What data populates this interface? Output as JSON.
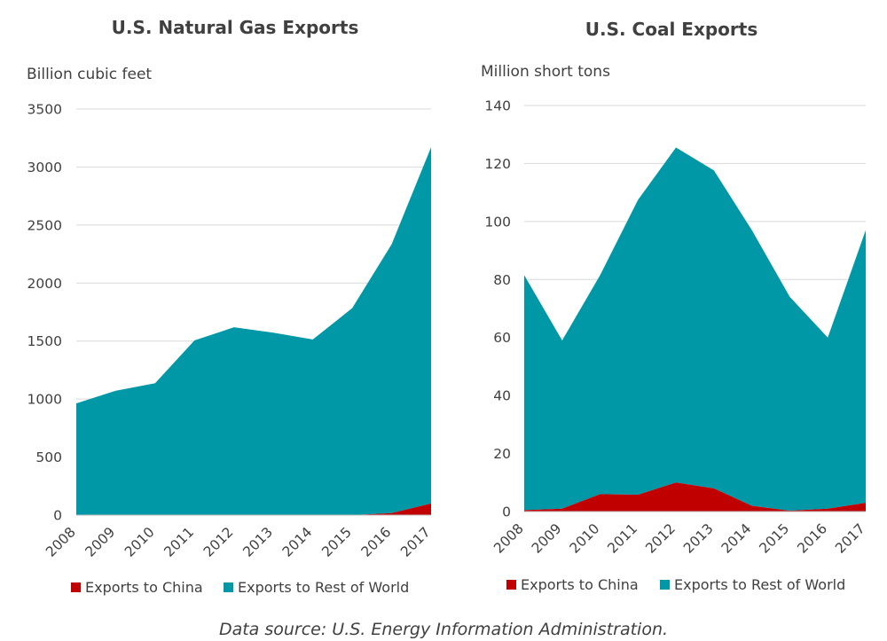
{
  "colors": {
    "china": "#c00000",
    "rest": "#0097a7",
    "grid": "#d9d9d9",
    "text": "#404040"
  },
  "source_note": "Data source: U.S. Energy Information Administration.",
  "chart_data": [
    {
      "type": "area",
      "stacked": true,
      "title": "U.S. Natural Gas Exports",
      "ylabel": "Billion cubic feet",
      "ylim": [
        0,
        3500
      ],
      "yticks": [
        0,
        500,
        1000,
        1500,
        2000,
        2500,
        3000,
        3500
      ],
      "x": [
        "2008",
        "2009",
        "2010",
        "2011",
        "2012",
        "2013",
        "2014",
        "2015",
        "2016",
        "2017"
      ],
      "grid": true,
      "legend": "bottom",
      "series": [
        {
          "name": "Exports to China",
          "color": "#c00000",
          "values": [
            0,
            0,
            0,
            0,
            0,
            0,
            0,
            0,
            17,
            100
          ]
        },
        {
          "name": "Exports to Rest of World",
          "color": "#0097a7",
          "values": [
            963,
            1072,
            1137,
            1506,
            1619,
            1572,
            1514,
            1784,
            2318,
            3070
          ]
        }
      ]
    },
    {
      "type": "area",
      "stacked": true,
      "title": "U.S. Coal Exports",
      "ylabel": "Million short tons",
      "ylim": [
        0,
        140
      ],
      "yticks": [
        0,
        20,
        40,
        60,
        80,
        100,
        120,
        140
      ],
      "x": [
        "2008",
        "2009",
        "2010",
        "2011",
        "2012",
        "2013",
        "2014",
        "2015",
        "2016",
        "2017"
      ],
      "grid": true,
      "legend": "bottom",
      "series": [
        {
          "name": "Exports to China",
          "color": "#c00000",
          "values": [
            0.5,
            1,
            6,
            5.8,
            10,
            8,
            2,
            0.3,
            1,
            3
          ]
        },
        {
          "name": "Exports to Rest of World",
          "color": "#0097a7",
          "values": [
            81,
            58,
            75.5,
            101.7,
            115.5,
            109.6,
            95,
            73.7,
            59,
            94
          ]
        }
      ]
    }
  ]
}
